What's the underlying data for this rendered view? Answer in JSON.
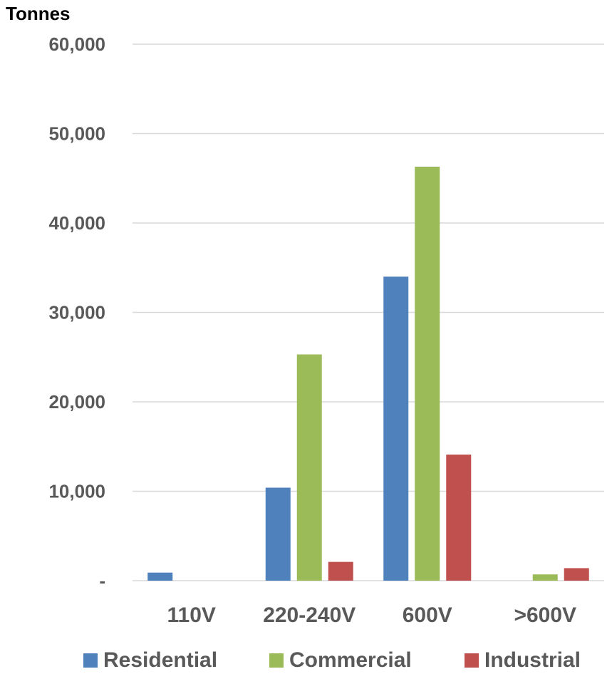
{
  "chart_data": {
    "type": "bar",
    "ylabel": "Tonnes",
    "categories": [
      "110V",
      "220-240V",
      "600V",
      ">600V"
    ],
    "series": [
      {
        "name": "Residential",
        "color": "#4F81BD",
        "values": [
          900,
          10400,
          34000,
          0
        ]
      },
      {
        "name": "Commercial",
        "color": "#9BBB59",
        "values": [
          0,
          25300,
          46300,
          700
        ]
      },
      {
        "name": "Industrial",
        "color": "#C0504D",
        "values": [
          0,
          2100,
          14100,
          1400
        ]
      }
    ],
    "ylim": [
      0,
      60000
    ],
    "yticks": [
      0,
      10000,
      20000,
      30000,
      40000,
      50000,
      60000
    ],
    "ytick_labels": [
      "-",
      "10,000",
      "20,000",
      "30,000",
      "40,000",
      "50,000",
      "60,000"
    ],
    "grid": true,
    "legend": "bottom"
  }
}
